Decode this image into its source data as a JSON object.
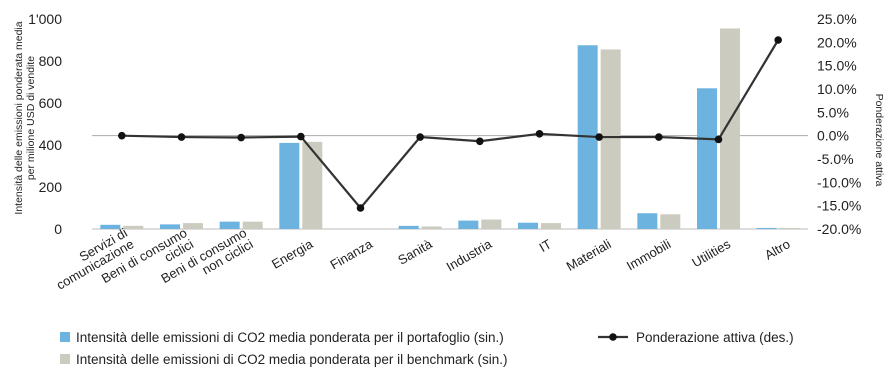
{
  "chart_data": {
    "type": "bar",
    "categories": [
      [
        "Servizi di",
        "comunicazione"
      ],
      [
        "Beni di consumo",
        "ciclici"
      ],
      [
        "Beni di consumo",
        "non ciclici"
      ],
      [
        "Energia"
      ],
      [
        "Finanza"
      ],
      [
        "Sanità"
      ],
      [
        "Industria"
      ],
      [
        "IT"
      ],
      [
        "Materiali"
      ],
      [
        "Immobili"
      ],
      [
        "Utilities"
      ],
      [
        "Altro"
      ]
    ],
    "series": [
      {
        "name": "Intensità delle emissioni di CO2 media ponderata per il portafoglio (sin.)",
        "type": "bar",
        "axis": "left",
        "color": "#6cb4df",
        "values": [
          20,
          22,
          35,
          410,
          0,
          15,
          40,
          30,
          875,
          75,
          670,
          5
        ]
      },
      {
        "name": "Intensità delle emissioni di CO2 media ponderata per il benchmark (sin.)",
        "type": "bar",
        "axis": "left",
        "color": "#cccbbf",
        "values": [
          15,
          28,
          35,
          415,
          0,
          12,
          45,
          28,
          855,
          70,
          955,
          5
        ]
      },
      {
        "name": "Ponderazione attiva (des.)",
        "type": "line",
        "axis": "right",
        "color": "#333333",
        "values": [
          0.0,
          -0.3,
          -0.4,
          -0.2,
          -15.5,
          -0.3,
          -1.2,
          0.4,
          -0.3,
          -0.3,
          -0.8,
          20.5
        ]
      }
    ],
    "y_left": {
      "label": "Intensità delle emissioni ponderata media per milione USD di vendite",
      "label_lines": [
        "Intensità delle emissioni ponderata media",
        "per milione USD di vendite"
      ],
      "ylim": [
        0,
        1000
      ],
      "ticks": [
        0,
        200,
        400,
        600,
        800,
        1000
      ],
      "tick_labels": [
        "0",
        "200",
        "400",
        "600",
        "800",
        "1'000"
      ]
    },
    "y_right": {
      "label": "Ponderazione attiva",
      "ylim": [
        -20,
        25
      ],
      "ticks": [
        25,
        20,
        15,
        10,
        5,
        0,
        -5,
        -10,
        -15,
        -20
      ],
      "tick_labels": [
        "25.0%",
        "20.0%",
        "15.0%",
        "10.0%",
        "5.0%",
        "0.0%",
        "-5.0%",
        "-10.0%",
        "-15.0%",
        "-20.0%"
      ]
    },
    "grid": false,
    "legend_position": "bottom"
  }
}
